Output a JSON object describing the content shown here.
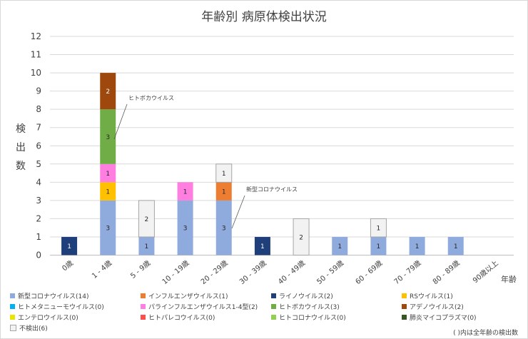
{
  "chart_data": {
    "type": "bar",
    "stacked": true,
    "title": "年齢別 病原体検出状況",
    "ylabel": "検出数",
    "xlabel": "年齢",
    "ylim": [
      0,
      12
    ],
    "yticks": [
      "0",
      "1",
      "2",
      "3",
      "4",
      "5",
      "6",
      "7",
      "8",
      "9",
      "10",
      "11",
      "12"
    ],
    "categories": [
      "0歳",
      "1 - 4歳",
      "5 - 9歳",
      "10 - 19歳",
      "20 - 29歳",
      "30 - 39歳",
      "40 - 49歳",
      "50 - 59歳",
      "60 - 69歳",
      "70 - 79歳",
      "80 - 89歳",
      "90歳以上"
    ],
    "series": [
      {
        "name": "新型コロナウイルス",
        "legend": "新型コロナウイルス(14)",
        "color": "#8faadc",
        "values": [
          0,
          3,
          1,
          3,
          3,
          0,
          0,
          1,
          1,
          1,
          1,
          0
        ]
      },
      {
        "name": "インフルエンザウイルス",
        "legend": "インフルエンザウイルス(1)",
        "color": "#ed7d31",
        "values": [
          0,
          0,
          0,
          0,
          1,
          0,
          0,
          0,
          0,
          0,
          0,
          0
        ]
      },
      {
        "name": "ライノウイルス",
        "legend": "ライノウイルス(2)",
        "color": "#1f3f7a",
        "values": [
          1,
          0,
          0,
          0,
          0,
          1,
          0,
          0,
          0,
          0,
          0,
          0
        ]
      },
      {
        "name": "RSウイルス",
        "legend": "RSウイルス(1)",
        "color": "#ffc000",
        "values": [
          0,
          1,
          0,
          0,
          0,
          0,
          0,
          0,
          0,
          0,
          0,
          0
        ]
      },
      {
        "name": "ヒトメタニューモウイルス",
        "legend": "ヒトメタニューモウイルス(0)",
        "color": "#00b0f0",
        "values": [
          0,
          0,
          0,
          0,
          0,
          0,
          0,
          0,
          0,
          0,
          0,
          0
        ]
      },
      {
        "name": "パラインフルエンザウイルス1-4型",
        "legend": "パラインフルエンザウイルス1-4型(2)",
        "color": "#ff7ee0",
        "values": [
          0,
          1,
          0,
          1,
          0,
          0,
          0,
          0,
          0,
          0,
          0,
          0
        ]
      },
      {
        "name": "ヒトボカウイルス",
        "legend": "ヒトボカウイルス(3)",
        "color": "#70ad47",
        "values": [
          0,
          3,
          0,
          0,
          0,
          0,
          0,
          0,
          0,
          0,
          0,
          0
        ]
      },
      {
        "name": "アデノウイルス",
        "legend": "アデノウイルス(2)",
        "color": "#9e480e",
        "values": [
          0,
          2,
          0,
          0,
          0,
          0,
          0,
          0,
          0,
          0,
          0,
          0
        ]
      },
      {
        "name": "エンテロウイルス",
        "legend": "エンテロウイルス(0)",
        "color": "#e7e600",
        "values": [
          0,
          0,
          0,
          0,
          0,
          0,
          0,
          0,
          0,
          0,
          0,
          0
        ]
      },
      {
        "name": "ヒトパレコウイルス",
        "legend": "ヒトパレコウイルス(0)",
        "color": "#ff4d4d",
        "values": [
          0,
          0,
          0,
          0,
          0,
          0,
          0,
          0,
          0,
          0,
          0,
          0
        ]
      },
      {
        "name": "ヒトコロナウイルス",
        "legend": "ヒトコロナウイルス(0)",
        "color": "#92d050",
        "values": [
          0,
          0,
          0,
          0,
          0,
          0,
          0,
          0,
          0,
          0,
          0,
          0
        ]
      },
      {
        "name": "肺炎マイコプラズマ",
        "legend": "肺炎マイコプラズマ(0)",
        "color": "#375623",
        "values": [
          0,
          0,
          0,
          0,
          0,
          0,
          0,
          0,
          0,
          0,
          0,
          0
        ]
      },
      {
        "name": "不検出",
        "legend": "不検出(6)",
        "color": "#f2f2f2",
        "values": [
          0,
          0,
          2,
          0,
          1,
          0,
          2,
          0,
          1,
          0,
          0,
          0
        ]
      }
    ],
    "stack_order": [
      "新型コロナウイルス",
      "RSウイルス",
      "インフルエンザウイルス",
      "パラインフルエンザウイルス1-4型",
      "ヒトボカウイルス",
      "アデノウイルス",
      "ライノウイルス",
      "不検出"
    ],
    "annotations": [
      {
        "text": "ヒトボカウイルス",
        "category": "1 - 4歳"
      },
      {
        "text": "新型コロナウイルス",
        "category": "20 - 29歳"
      }
    ],
    "note": "( )内は全年齢の検出数"
  }
}
